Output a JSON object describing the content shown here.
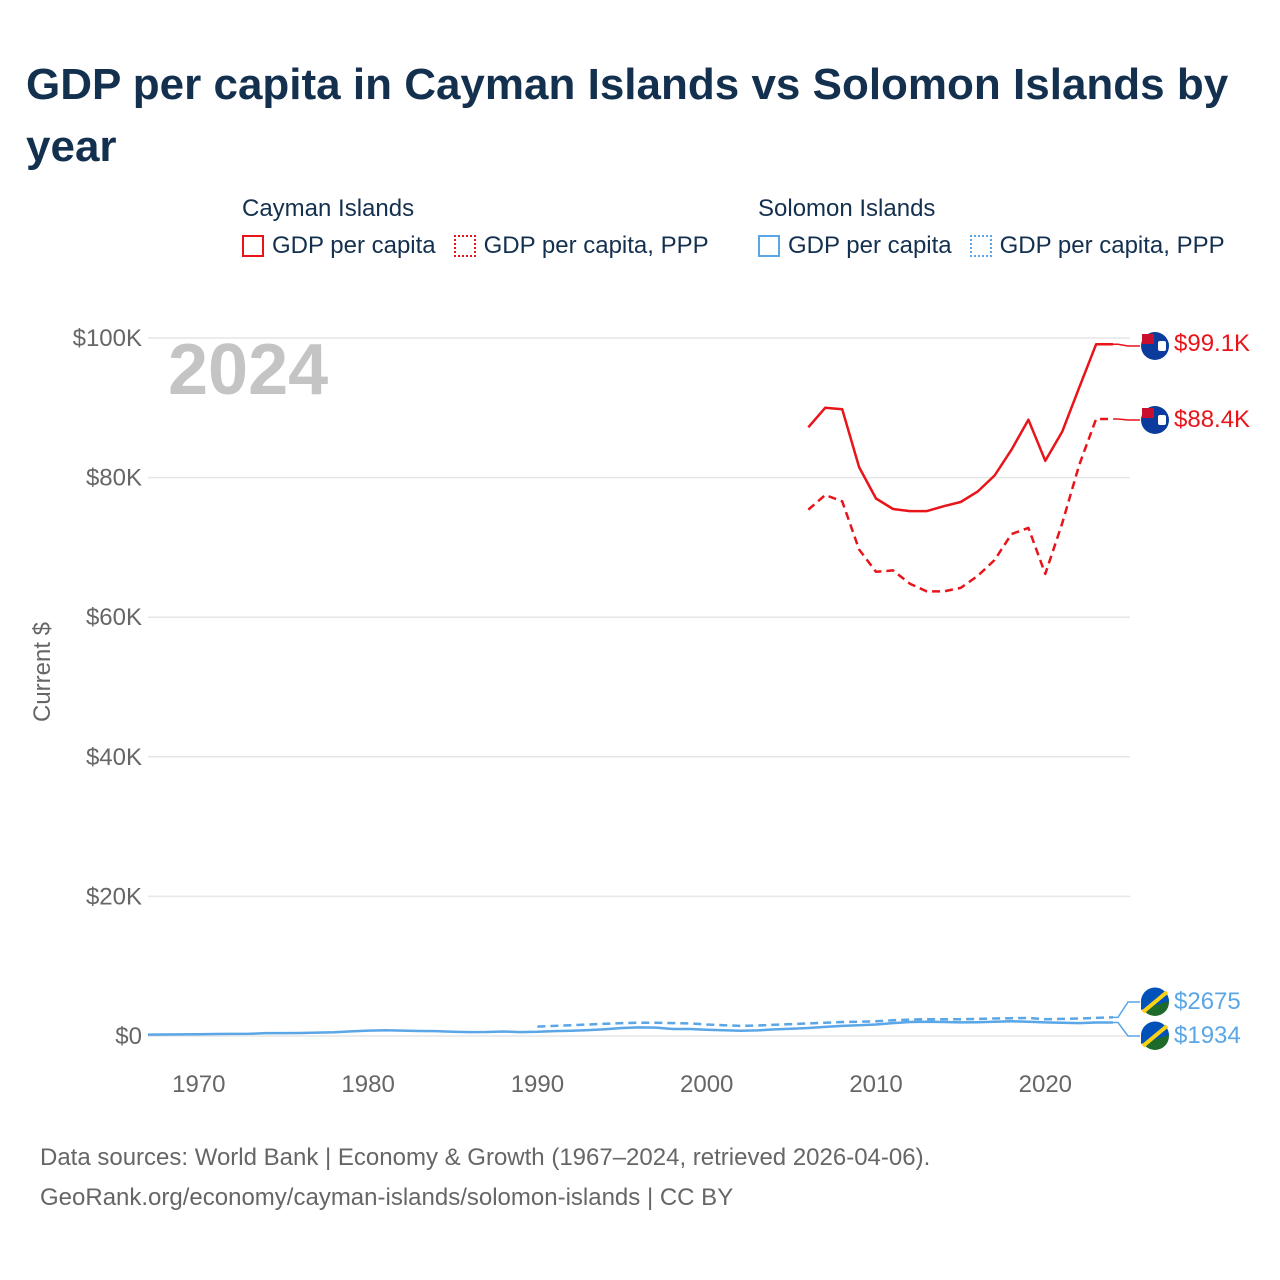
{
  "title": "GDP per capita in Cayman Islands vs Solomon Islands by year",
  "legend": {
    "groups": [
      {
        "name": "Cayman Islands",
        "items": [
          "GDP per capita",
          "GDP per capita, PPP"
        ],
        "color": "#e8141a"
      },
      {
        "name": "Solomon Islands",
        "items": [
          "GDP per capita",
          "GDP per capita, PPP"
        ],
        "color": "#5aa6e6"
      }
    ]
  },
  "year_label": "2024",
  "footer": {
    "line1": "Data sources: World Bank | Economy & Growth (1967–2024, retrieved 2026-04-06).",
    "line2": "GeoRank.org/economy/cayman-islands/solomon-islands | CC BY"
  },
  "chart_data": {
    "type": "line",
    "title": "GDP per capita in Cayman Islands vs Solomon Islands by year",
    "xlabel": "",
    "ylabel": "Current $",
    "xlim": [
      1967,
      2025
    ],
    "ylim": [
      0,
      100000
    ],
    "x_ticks": [
      1970,
      1980,
      1990,
      2000,
      2010,
      2020
    ],
    "x_tick_labels": [
      "1970",
      "1980",
      "1990",
      "2000",
      "2010",
      "2020"
    ],
    "y_ticks": [
      0,
      20000,
      40000,
      60000,
      80000,
      100000
    ],
    "y_tick_labels": [
      "$0",
      "$20K",
      "$40K",
      "$60K",
      "$80K",
      "$100K"
    ],
    "grid": true,
    "series": [
      {
        "name": "Cayman Islands GDP per capita",
        "color": "#e8141a",
        "style": "solid",
        "end_label": "$99.1K",
        "x": [
          2006,
          2007,
          2008,
          2009,
          2010,
          2011,
          2012,
          2013,
          2014,
          2015,
          2016,
          2017,
          2018,
          2019,
          2020,
          2021,
          2022,
          2023,
          2024
        ],
        "y": [
          87200,
          90000,
          89800,
          81500,
          77000,
          75500,
          75200,
          75200,
          75900,
          76500,
          78000,
          80300,
          84000,
          88300,
          82400,
          86600,
          92900,
          99100,
          99100
        ]
      },
      {
        "name": "Cayman Islands GDP per capita, PPP",
        "color": "#e8141a",
        "style": "dashed",
        "end_label": "$88.4K",
        "x": [
          2006,
          2007,
          2008,
          2009,
          2010,
          2011,
          2012,
          2013,
          2014,
          2015,
          2016,
          2017,
          2018,
          2019,
          2020,
          2021,
          2022,
          2023,
          2024
        ],
        "y": [
          75400,
          77500,
          76600,
          69700,
          66500,
          66700,
          64800,
          63700,
          63700,
          64200,
          65900,
          68200,
          71900,
          72800,
          66200,
          73500,
          81800,
          88400,
          88400
        ]
      },
      {
        "name": "Solomon Islands GDP per capita",
        "color": "#5aa6e6",
        "style": "solid",
        "end_label": "$1934",
        "x": [
          1967,
          1968,
          1969,
          1970,
          1971,
          1972,
          1973,
          1974,
          1975,
          1976,
          1977,
          1978,
          1979,
          1980,
          1981,
          1982,
          1983,
          1984,
          1985,
          1986,
          1987,
          1988,
          1989,
          1990,
          1991,
          1992,
          1993,
          1994,
          1995,
          1996,
          1997,
          1998,
          1999,
          2000,
          2001,
          2002,
          2003,
          2004,
          2005,
          2006,
          2007,
          2008,
          2009,
          2010,
          2011,
          2012,
          2013,
          2014,
          2015,
          2016,
          2017,
          2018,
          2019,
          2020,
          2021,
          2022,
          2023,
          2024
        ],
        "y": [
          200,
          220,
          230,
          260,
          290,
          300,
          320,
          420,
          410,
          430,
          480,
          540,
          660,
          780,
          820,
          780,
          720,
          700,
          620,
          560,
          580,
          640,
          560,
          600,
          700,
          760,
          850,
          980,
          1150,
          1230,
          1200,
          1000,
          1000,
          900,
          830,
          750,
          800,
          950,
          1050,
          1150,
          1300,
          1450,
          1550,
          1650,
          1850,
          2000,
          2050,
          2000,
          1950,
          1980,
          2050,
          2100,
          2050,
          1950,
          1900,
          1850,
          1930,
          1934
        ]
      },
      {
        "name": "Solomon Islands GDP per capita, PPP",
        "color": "#5aa6e6",
        "style": "dashed",
        "end_label": "$2675",
        "x": [
          1990,
          1991,
          1992,
          1993,
          1994,
          1995,
          1996,
          1997,
          1998,
          1999,
          2000,
          2001,
          2002,
          2003,
          2004,
          2005,
          2006,
          2007,
          2008,
          2009,
          2010,
          2011,
          2012,
          2013,
          2014,
          2015,
          2016,
          2017,
          2018,
          2019,
          2020,
          2021,
          2022,
          2023,
          2024
        ],
        "y": [
          1350,
          1450,
          1550,
          1650,
          1750,
          1850,
          1900,
          1900,
          1850,
          1800,
          1650,
          1550,
          1450,
          1500,
          1600,
          1700,
          1800,
          1900,
          2000,
          2050,
          2100,
          2250,
          2350,
          2400,
          2400,
          2400,
          2450,
          2500,
          2550,
          2600,
          2400,
          2450,
          2500,
          2600,
          2675
        ]
      }
    ]
  }
}
